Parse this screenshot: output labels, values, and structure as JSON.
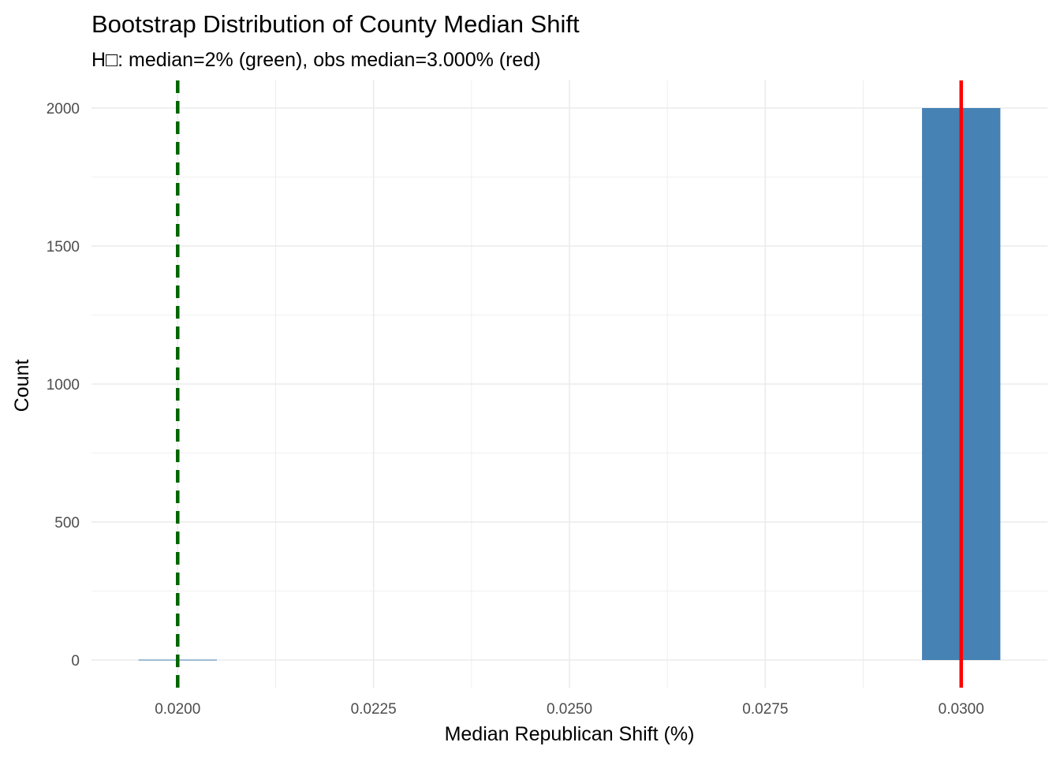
{
  "chart_data": {
    "type": "bar",
    "title": "Bootstrap Distribution of County Median Shift",
    "subtitle": "H□: median=2% (green), obs median=3.000% (red)",
    "xlabel": "Median Republican Shift (%)",
    "ylabel": "Count",
    "xlim": [
      0.0189,
      0.0311
    ],
    "ylim": [
      -100,
      2100
    ],
    "x_ticks": [
      0.02,
      0.0225,
      0.025,
      0.0275,
      0.03
    ],
    "x_tick_labels": [
      "0.0200",
      "0.0225",
      "0.0250",
      "0.0275",
      "0.0300"
    ],
    "y_ticks": [
      0,
      500,
      1000,
      1500,
      2000
    ],
    "y_tick_labels": [
      "0",
      "500",
      "1000",
      "1500",
      "2000"
    ],
    "bins": [
      {
        "x0": 0.0195,
        "x1": 0.0205,
        "count": 0
      },
      {
        "x0": 0.0295,
        "x1": 0.0305,
        "count": 2000
      }
    ],
    "bar_color": "#4682B4",
    "reference_lines": [
      {
        "name": "H0 median",
        "x": 0.02,
        "color": "#006400",
        "style": "dashed"
      },
      {
        "name": "observed median",
        "x": 0.03,
        "color": "#FF0000",
        "style": "solid"
      }
    ],
    "grid": true,
    "legend": "none"
  }
}
